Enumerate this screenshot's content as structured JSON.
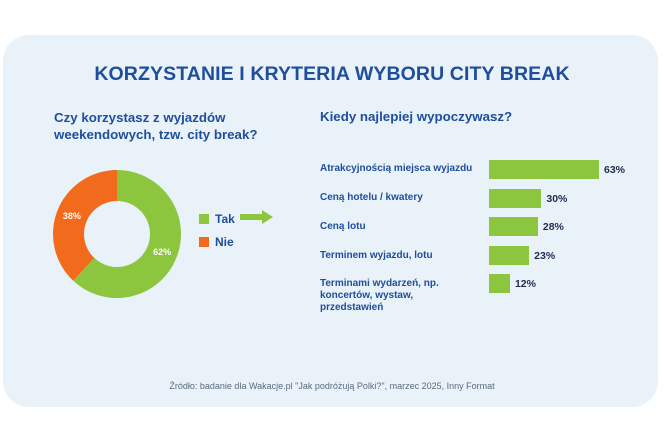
{
  "title": "KORZYSTANIE I KRYTERIA WYBORU CITY BREAK",
  "question_left": "Czy korzystasz z wyjazdów weekendowych, tzw. city break?",
  "question_right": "Kiedy najlepiej wypoczywasz?",
  "source": "Źródło: badanie dla Wakacje.pl \"Jak podróżują Polki?\", marzec 2025, Inny Format",
  "colors": {
    "accent": "#8cc63f",
    "secondary": "#f26a1b",
    "title": "#1f4e9c"
  },
  "icons": {
    "arrow": "arrow-right-icon"
  },
  "chart_data": [
    {
      "type": "pie",
      "donut": true,
      "slices": [
        {
          "label": "Tak",
          "value": 62,
          "value_label": "62%",
          "color": "#8cc63f"
        },
        {
          "label": "Nie",
          "value": 38,
          "value_label": "38%",
          "color": "#f26a1b"
        }
      ],
      "legend": "right"
    },
    {
      "type": "bar",
      "orientation": "horizontal",
      "categories": [
        "Atrakcyjnością miejsca wyjazdu",
        "Ceną hotelu / kwatery",
        "Ceną lotu",
        "Terminem wyjazdu, lotu",
        "Terminami wydarzeń, np. koncertów, wystaw, przedstawień"
      ],
      "values": [
        63,
        30,
        28,
        23,
        12
      ],
      "value_labels": [
        "63%",
        "30%",
        "28%",
        "23%",
        "12%"
      ],
      "color": "#8cc63f",
      "xlim": [
        0,
        63
      ]
    }
  ]
}
